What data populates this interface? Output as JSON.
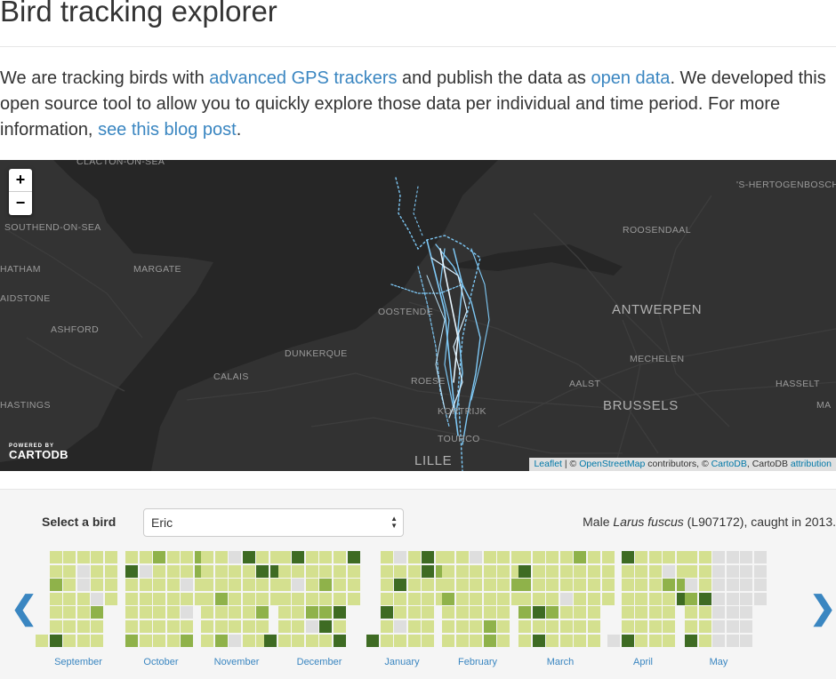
{
  "header": {
    "title": "Bird tracking explorer"
  },
  "intro": {
    "t1": "We are tracking birds with ",
    "link1": "advanced GPS trackers",
    "t2": " and publish the data as ",
    "link2": "open data",
    "t3": ". We developed this open source tool to allow you to quickly explore those data per individual and time period. For more information, ",
    "link3": "see this blog post",
    "t4": "."
  },
  "map": {
    "zoom_in": "+",
    "zoom_out": "−",
    "labels": [
      "CLACTON-ON-SEA",
      "'S-HERTOGENBOSCH",
      "SOUTHEND-ON-SEA",
      "ROOSENDAAL",
      "HATHAM",
      "MARGATE",
      "AIDSTONE",
      "OOSTENDE",
      "ANTWERPEN",
      "ASHFORD",
      "DUNKERQUE",
      "MECHELEN",
      "CALAIS",
      "ROESE",
      "AALST",
      "HASSELT",
      "HASTINGS",
      "BRUSSELS",
      "MA",
      "KORTRIJK",
      "TOURCO",
      "LILLE"
    ],
    "powered_small": "POWERED BY",
    "powered_logo": "CARTODB",
    "attribution": {
      "leaflet": "Leaflet",
      "sep": " | © ",
      "osm": "OpenStreetMap",
      "contrib": " contributors, © ",
      "cartodb": "CartoDB",
      "tail": ", CartoDB ",
      "attr": "attribution"
    }
  },
  "selector": {
    "label": "Select a bird",
    "value": "Eric",
    "info_pre": "Male ",
    "info_species": "Larus fuscus",
    "info_post": " (L907172), caught in 2013."
  },
  "calendar": {
    "months": [
      "September",
      "October",
      "November",
      "December",
      "January",
      "February",
      "March",
      "April",
      "May"
    ],
    "colors": {
      "empty": "#dedede",
      "low": "#d4e08f",
      "mid": "#8fb24a",
      "high": "#3e6b23"
    },
    "nav_prev": "❮",
    "nav_next": "❯"
  }
}
